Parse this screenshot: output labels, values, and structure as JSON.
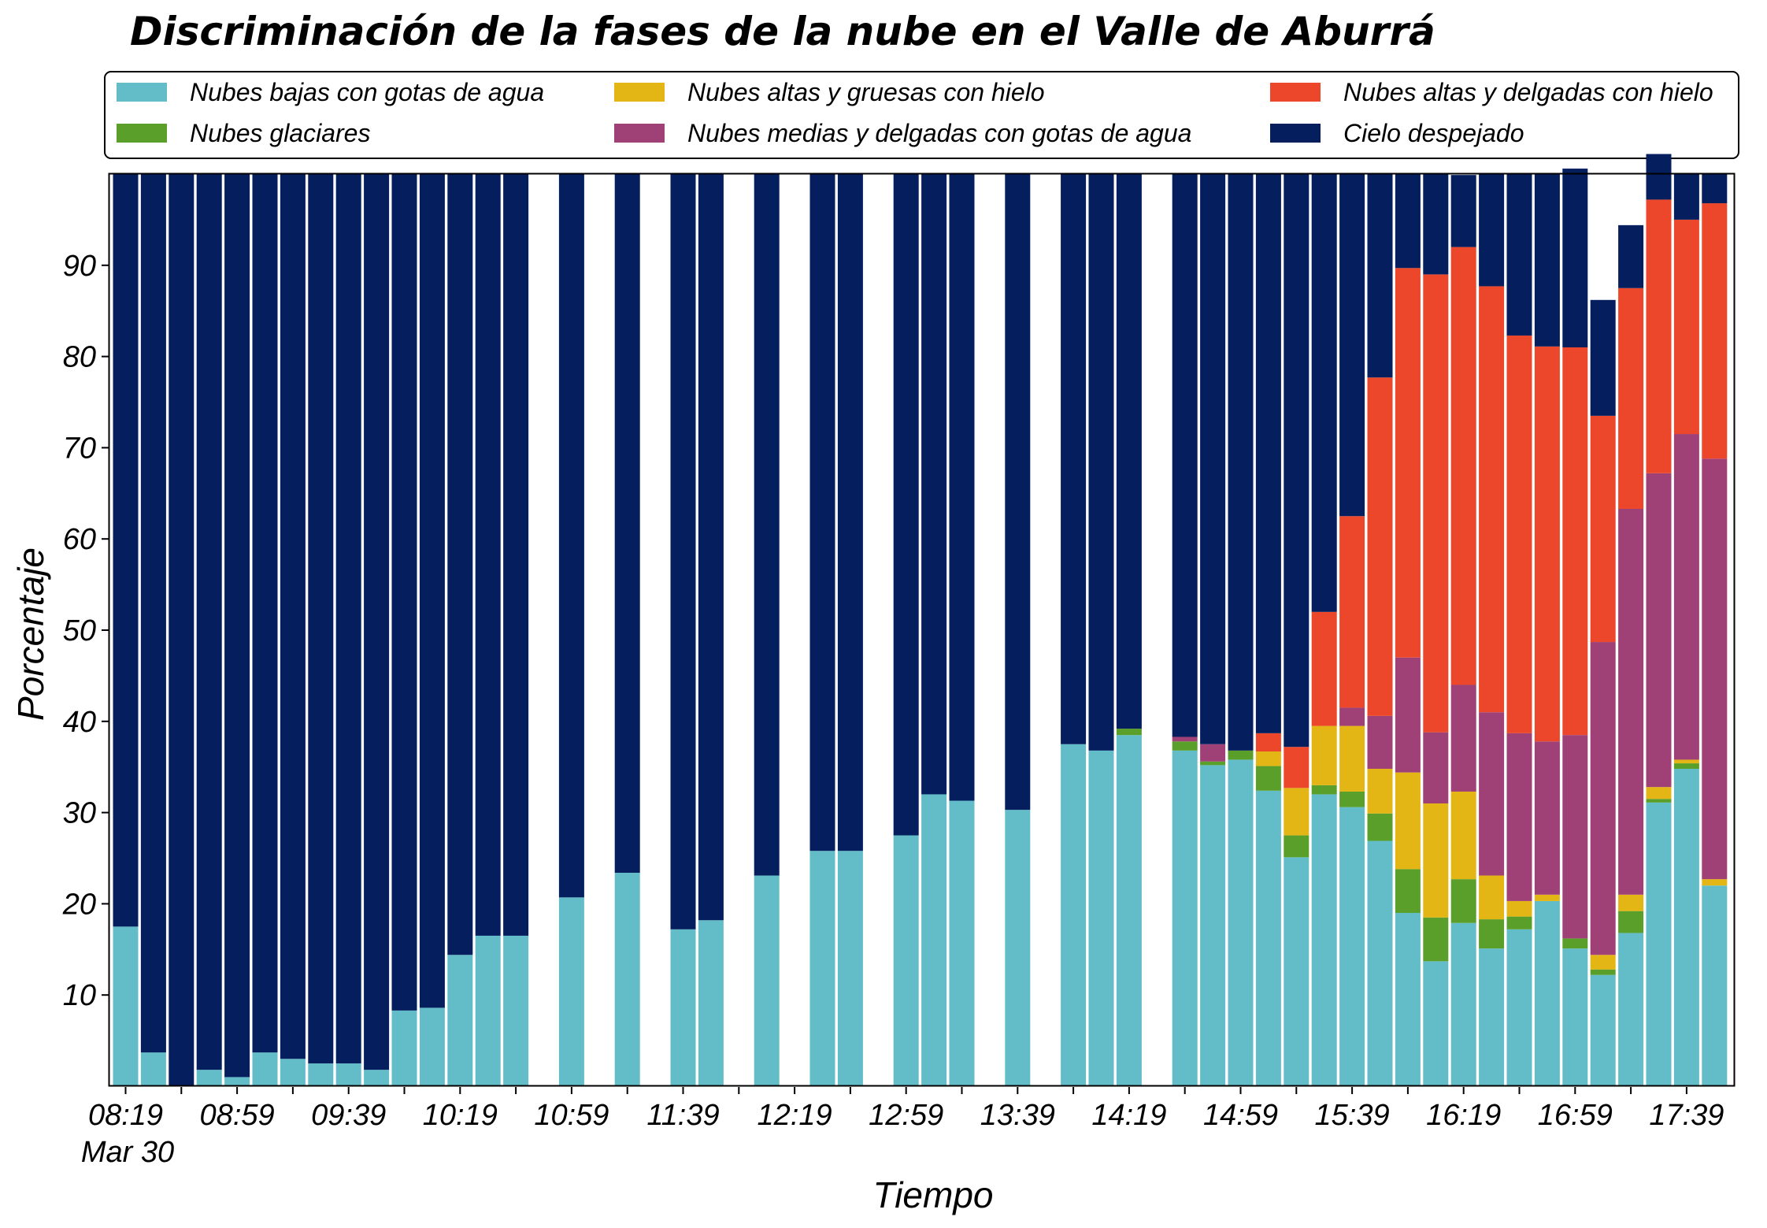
{
  "chart_data": {
    "type": "bar",
    "stacked": true,
    "title": "Discriminación de la fases de la nube en el Valle de Aburrá",
    "xlabel": "Tiempo",
    "ylabel": "Porcentaje",
    "date_label": "Mar 30",
    "ylim": [
      0,
      100
    ],
    "yticks": [
      10,
      20,
      30,
      40,
      50,
      60,
      70,
      80,
      90
    ],
    "grid": false,
    "legend_position": "top",
    "x_tick_labels": [
      "08:19",
      "08:59",
      "09:39",
      "10:19",
      "10:59",
      "11:39",
      "12:19",
      "12:59",
      "13:39",
      "14:19",
      "14:59",
      "15:39",
      "16:19",
      "16:59",
      "17:39"
    ],
    "x_tick_label_slots": [
      0,
      4,
      8,
      12,
      16,
      20,
      24,
      28,
      32,
      36,
      40,
      44,
      48,
      52,
      56
    ],
    "x": [
      "08:19",
      "08:29",
      "08:39",
      "08:49",
      "08:59",
      "09:09",
      "09:19",
      "09:29",
      "09:39",
      "09:49",
      "09:59",
      "10:09",
      "10:19",
      "10:29",
      "10:39",
      "10:49",
      "10:59",
      "11:09",
      "11:19",
      "11:29",
      "11:39",
      "11:49",
      "11:59",
      "12:09",
      "12:19",
      "12:29",
      "12:39",
      "12:49",
      "12:59",
      "13:09",
      "13:19",
      "13:29",
      "13:39",
      "13:49",
      "13:59",
      "14:09",
      "14:19",
      "14:29",
      "14:39",
      "14:49",
      "14:59",
      "15:09",
      "15:19",
      "15:29",
      "15:39",
      "15:49",
      "15:59",
      "16:09",
      "16:19",
      "16:29",
      "16:39",
      "16:49",
      "16:59",
      "17:09",
      "17:19",
      "17:29",
      "17:39",
      "17:49"
    ],
    "present": [
      true,
      true,
      true,
      true,
      true,
      true,
      true,
      true,
      true,
      true,
      true,
      true,
      true,
      true,
      true,
      false,
      true,
      false,
      true,
      false,
      true,
      true,
      false,
      true,
      false,
      true,
      true,
      false,
      true,
      true,
      true,
      false,
      true,
      false,
      true,
      true,
      true,
      false,
      true,
      true,
      true,
      true,
      true,
      true,
      true,
      true,
      true,
      true,
      true,
      true,
      true,
      true,
      true,
      true,
      true,
      true,
      true,
      true
    ],
    "series": [
      {
        "name": "Nubes bajas con gotas de agua",
        "color": "#63bdc8",
        "values": [
          17.5,
          3.7,
          0,
          1.8,
          1,
          3.7,
          3,
          2.5,
          2.5,
          1.8,
          8.3,
          8.6,
          14.4,
          16.5,
          16.5,
          0,
          20.7,
          0,
          23.4,
          0,
          17.2,
          18.2,
          0,
          23.1,
          0,
          25.8,
          25.8,
          0,
          27.5,
          32,
          31.3,
          0,
          30.3,
          0,
          37.5,
          36.8,
          38.5,
          0,
          36.8,
          35.2,
          35.8,
          32.4,
          25.1,
          32,
          30.6,
          26.9,
          19,
          13.7,
          17.9,
          15.1,
          17.2,
          20.3,
          15.1,
          12.2,
          16.8,
          31.1,
          34.8,
          22
        ]
      },
      {
        "name": "Nubes glaciares",
        "color": "#5b9f2b",
        "values": [
          0,
          0,
          0,
          0,
          0,
          0,
          0,
          0,
          0,
          0,
          0,
          0,
          0,
          0,
          0,
          0,
          0,
          0,
          0,
          0,
          0,
          0,
          0,
          0,
          0,
          0,
          0,
          0,
          0,
          0,
          0,
          0,
          0,
          0,
          0,
          0,
          0.7,
          0,
          1,
          0.4,
          1,
          2.7,
          2.4,
          1,
          1.7,
          3,
          4.8,
          4.8,
          4.8,
          3.2,
          1.4,
          0,
          1.1,
          0.6,
          2.4,
          0.4,
          0.6,
          0
        ]
      },
      {
        "name": "Nubes altas y gruesas con hielo",
        "color": "#e3b615",
        "values": [
          0,
          0,
          0,
          0,
          0,
          0,
          0,
          0,
          0,
          0,
          0,
          0,
          0,
          0,
          0,
          0,
          0,
          0,
          0,
          0,
          0,
          0,
          0,
          0,
          0,
          0,
          0,
          0,
          0,
          0,
          0,
          0,
          0,
          0,
          0,
          0,
          0,
          0,
          0,
          0,
          0,
          1.6,
          5.2,
          6.5,
          7.2,
          4.9,
          10.6,
          12.5,
          9.6,
          4.8,
          1.7,
          0.7,
          0,
          1.6,
          1.8,
          1.3,
          0.4,
          0.7
        ]
      },
      {
        "name": "Nubes medias y delgadas con gotas de agua",
        "color": "#9f4177",
        "values": [
          0,
          0,
          0,
          0,
          0,
          0,
          0,
          0,
          0,
          0,
          0,
          0,
          0,
          0,
          0,
          0,
          0,
          0,
          0,
          0,
          0,
          0,
          0,
          0,
          0,
          0,
          0,
          0,
          0,
          0,
          0,
          0,
          0,
          0,
          0,
          0,
          0,
          0,
          0.5,
          1.9,
          0,
          0,
          0,
          0,
          2,
          5.8,
          12.6,
          7.8,
          11.7,
          17.9,
          18.4,
          16.8,
          22.3,
          34.3,
          42.3,
          34.4,
          35.7,
          46.1
        ]
      },
      {
        "name": "Nubes altas y delgadas con hielo",
        "color": "#ec472a",
        "values": [
          0,
          0,
          0,
          0,
          0,
          0,
          0,
          0,
          0,
          0,
          0,
          0,
          0,
          0,
          0,
          0,
          0,
          0,
          0,
          0,
          0,
          0,
          0,
          0,
          0,
          0,
          0,
          0,
          0,
          0,
          0,
          0,
          0,
          0,
          0,
          0,
          0,
          0,
          0,
          0,
          0,
          2,
          4.5,
          12.5,
          21,
          37.1,
          42.7,
          50.2,
          48,
          46.7,
          43.6,
          43.3,
          42.5,
          24.8,
          24.2,
          30,
          23.5,
          28
        ]
      },
      {
        "name": "Cielo despejado",
        "color": "#041e5e",
        "values": [
          82.5,
          96.3,
          100,
          98.2,
          99,
          96.3,
          97,
          97.5,
          97.5,
          98.2,
          91.7,
          91.4,
          85.6,
          83.5,
          83.5,
          0,
          79.3,
          0,
          76.6,
          0,
          82.8,
          81.8,
          0,
          76.9,
          0,
          74.2,
          74.2,
          0,
          72.5,
          68,
          68.7,
          0,
          69.7,
          0,
          62.5,
          63.2,
          60.8,
          0,
          61.7,
          62.5,
          63.2,
          61.3,
          62.8,
          48,
          37.5,
          22.3,
          10.3,
          11,
          7.9,
          12.3,
          17.7,
          18.9,
          19.6,
          12.7,
          6.9,
          5,
          5,
          3.2
        ]
      }
    ]
  }
}
